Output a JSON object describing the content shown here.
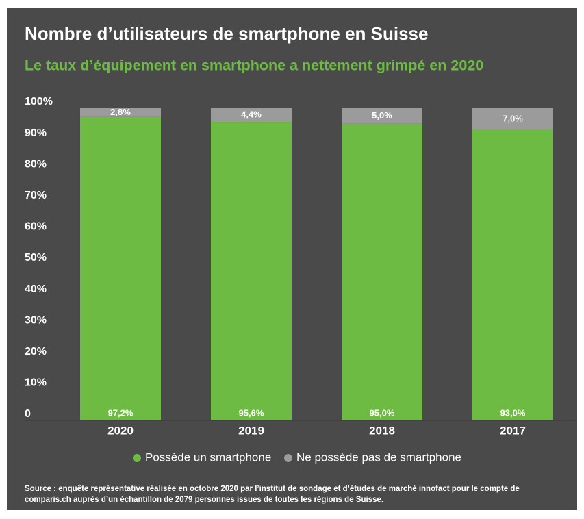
{
  "chart_data": {
    "type": "stacked_bar",
    "title": "Nombre d’utilisateurs de smartphone en Suisse",
    "subtitle": "Le taux d’équipement en smartphone a nettement grimpé en 2020",
    "categories": [
      "2020",
      "2019",
      "2018",
      "2017"
    ],
    "series": [
      {
        "name": "Possède un smartphone",
        "color": "#6dbb43",
        "values": [
          97.2,
          95.6,
          95.0,
          93.0
        ],
        "value_labels": [
          "97,2%",
          "95,6%",
          "95,0%",
          "93,0%"
        ]
      },
      {
        "name": "Ne possède pas de smartphone",
        "color": "#9b9b9b",
        "values": [
          2.8,
          4.4,
          5.0,
          7.0
        ],
        "value_labels": [
          "2,8%",
          "4,4%",
          "5,0%",
          "7,0%"
        ]
      }
    ],
    "ylim": [
      0,
      100
    ],
    "yticks": [
      0,
      {
        "value": 10,
        "label": "10%"
      },
      {
        "value": 20,
        "label": "20%"
      },
      {
        "value": 30,
        "label": "30%"
      },
      {
        "value": 40,
        "label": "40%"
      },
      {
        "value": 50,
        "label": "50%"
      },
      {
        "value": 60,
        "label": "60%"
      },
      {
        "value": 70,
        "label": "70%"
      },
      {
        "value": 80,
        "label": "80%"
      },
      {
        "value": 90,
        "label": "90%"
      },
      {
        "value": 100,
        "label": "100%"
      }
    ],
    "grid": false,
    "source": [
      "Source : enquête représentative réalisée en octobre 2020 par l’institut de sondage et d’études de marché innofact pour le compte de",
      "comparis.ch auprès d’un échantillon de 2079 personnes issues de toutes les régions de Suisse."
    ]
  }
}
